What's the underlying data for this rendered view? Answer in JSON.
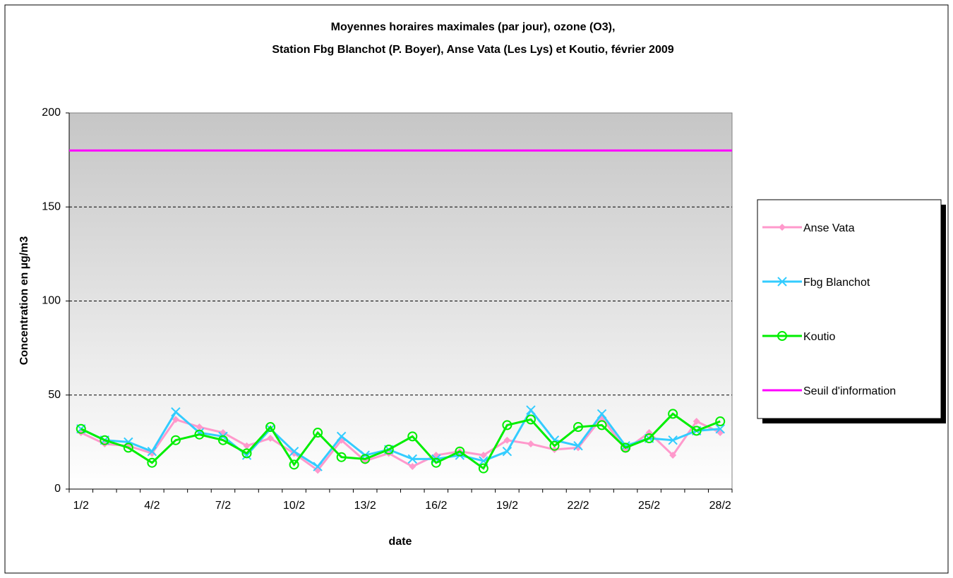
{
  "chart_data": {
    "type": "line",
    "title": [
      "Moyennes horaires maximales (par jour), ozone (O3),",
      "Station Fbg Blanchot (P. Boyer), Anse Vata (Les Lys) et Koutio, février 2009"
    ],
    "x_label": "date",
    "y_label": "Concentration en µg/m3",
    "categories": [
      "1/2",
      null,
      null,
      "4/2",
      null,
      null,
      "7/2",
      null,
      null,
      "10/2",
      null,
      null,
      "13/2",
      null,
      null,
      "16/2",
      null,
      null,
      "19/2",
      null,
      null,
      "22/2",
      null,
      null,
      "25/2",
      null,
      null,
      "28/2"
    ],
    "ylim": [
      0,
      200
    ],
    "yticks": [
      0,
      50,
      100,
      150,
      200
    ],
    "grid": true,
    "legend": "right",
    "series": [
      {
        "name": "Anse Vata",
        "color": "#ff99cc",
        "marker": "diamond",
        "values": [
          30,
          24,
          23,
          19,
          37,
          33,
          30,
          23,
          27,
          19,
          10,
          26,
          15,
          19,
          12,
          18,
          20,
          18,
          26,
          24,
          21,
          22,
          38,
          21,
          30,
          18,
          36,
          30
        ]
      },
      {
        "name": "Fbg Blanchot",
        "color": "#33ccff",
        "marker": "x",
        "values": [
          32,
          26,
          25,
          20,
          41,
          30,
          28,
          18,
          32,
          20,
          12,
          28,
          18,
          21,
          16,
          16,
          18,
          15,
          20,
          42,
          26,
          23,
          40,
          23,
          27,
          26,
          31,
          32
        ]
      },
      {
        "name": "Koutio",
        "color": "#00ee00",
        "marker": "circle",
        "values": [
          32,
          26,
          22,
          14,
          26,
          29,
          26,
          19,
          33,
          13,
          30,
          17,
          16,
          21,
          28,
          14,
          20,
          11,
          34,
          37,
          23,
          33,
          34,
          22,
          27,
          40,
          31,
          36
        ]
      },
      {
        "name": "Seuil d'information",
        "color": "#ff00ff",
        "marker": "none",
        "values": [
          180,
          180,
          180,
          180,
          180,
          180,
          180,
          180,
          180,
          180,
          180,
          180,
          180,
          180,
          180,
          180,
          180,
          180,
          180,
          180,
          180,
          180,
          180,
          180,
          180,
          180,
          180,
          180
        ]
      }
    ]
  }
}
